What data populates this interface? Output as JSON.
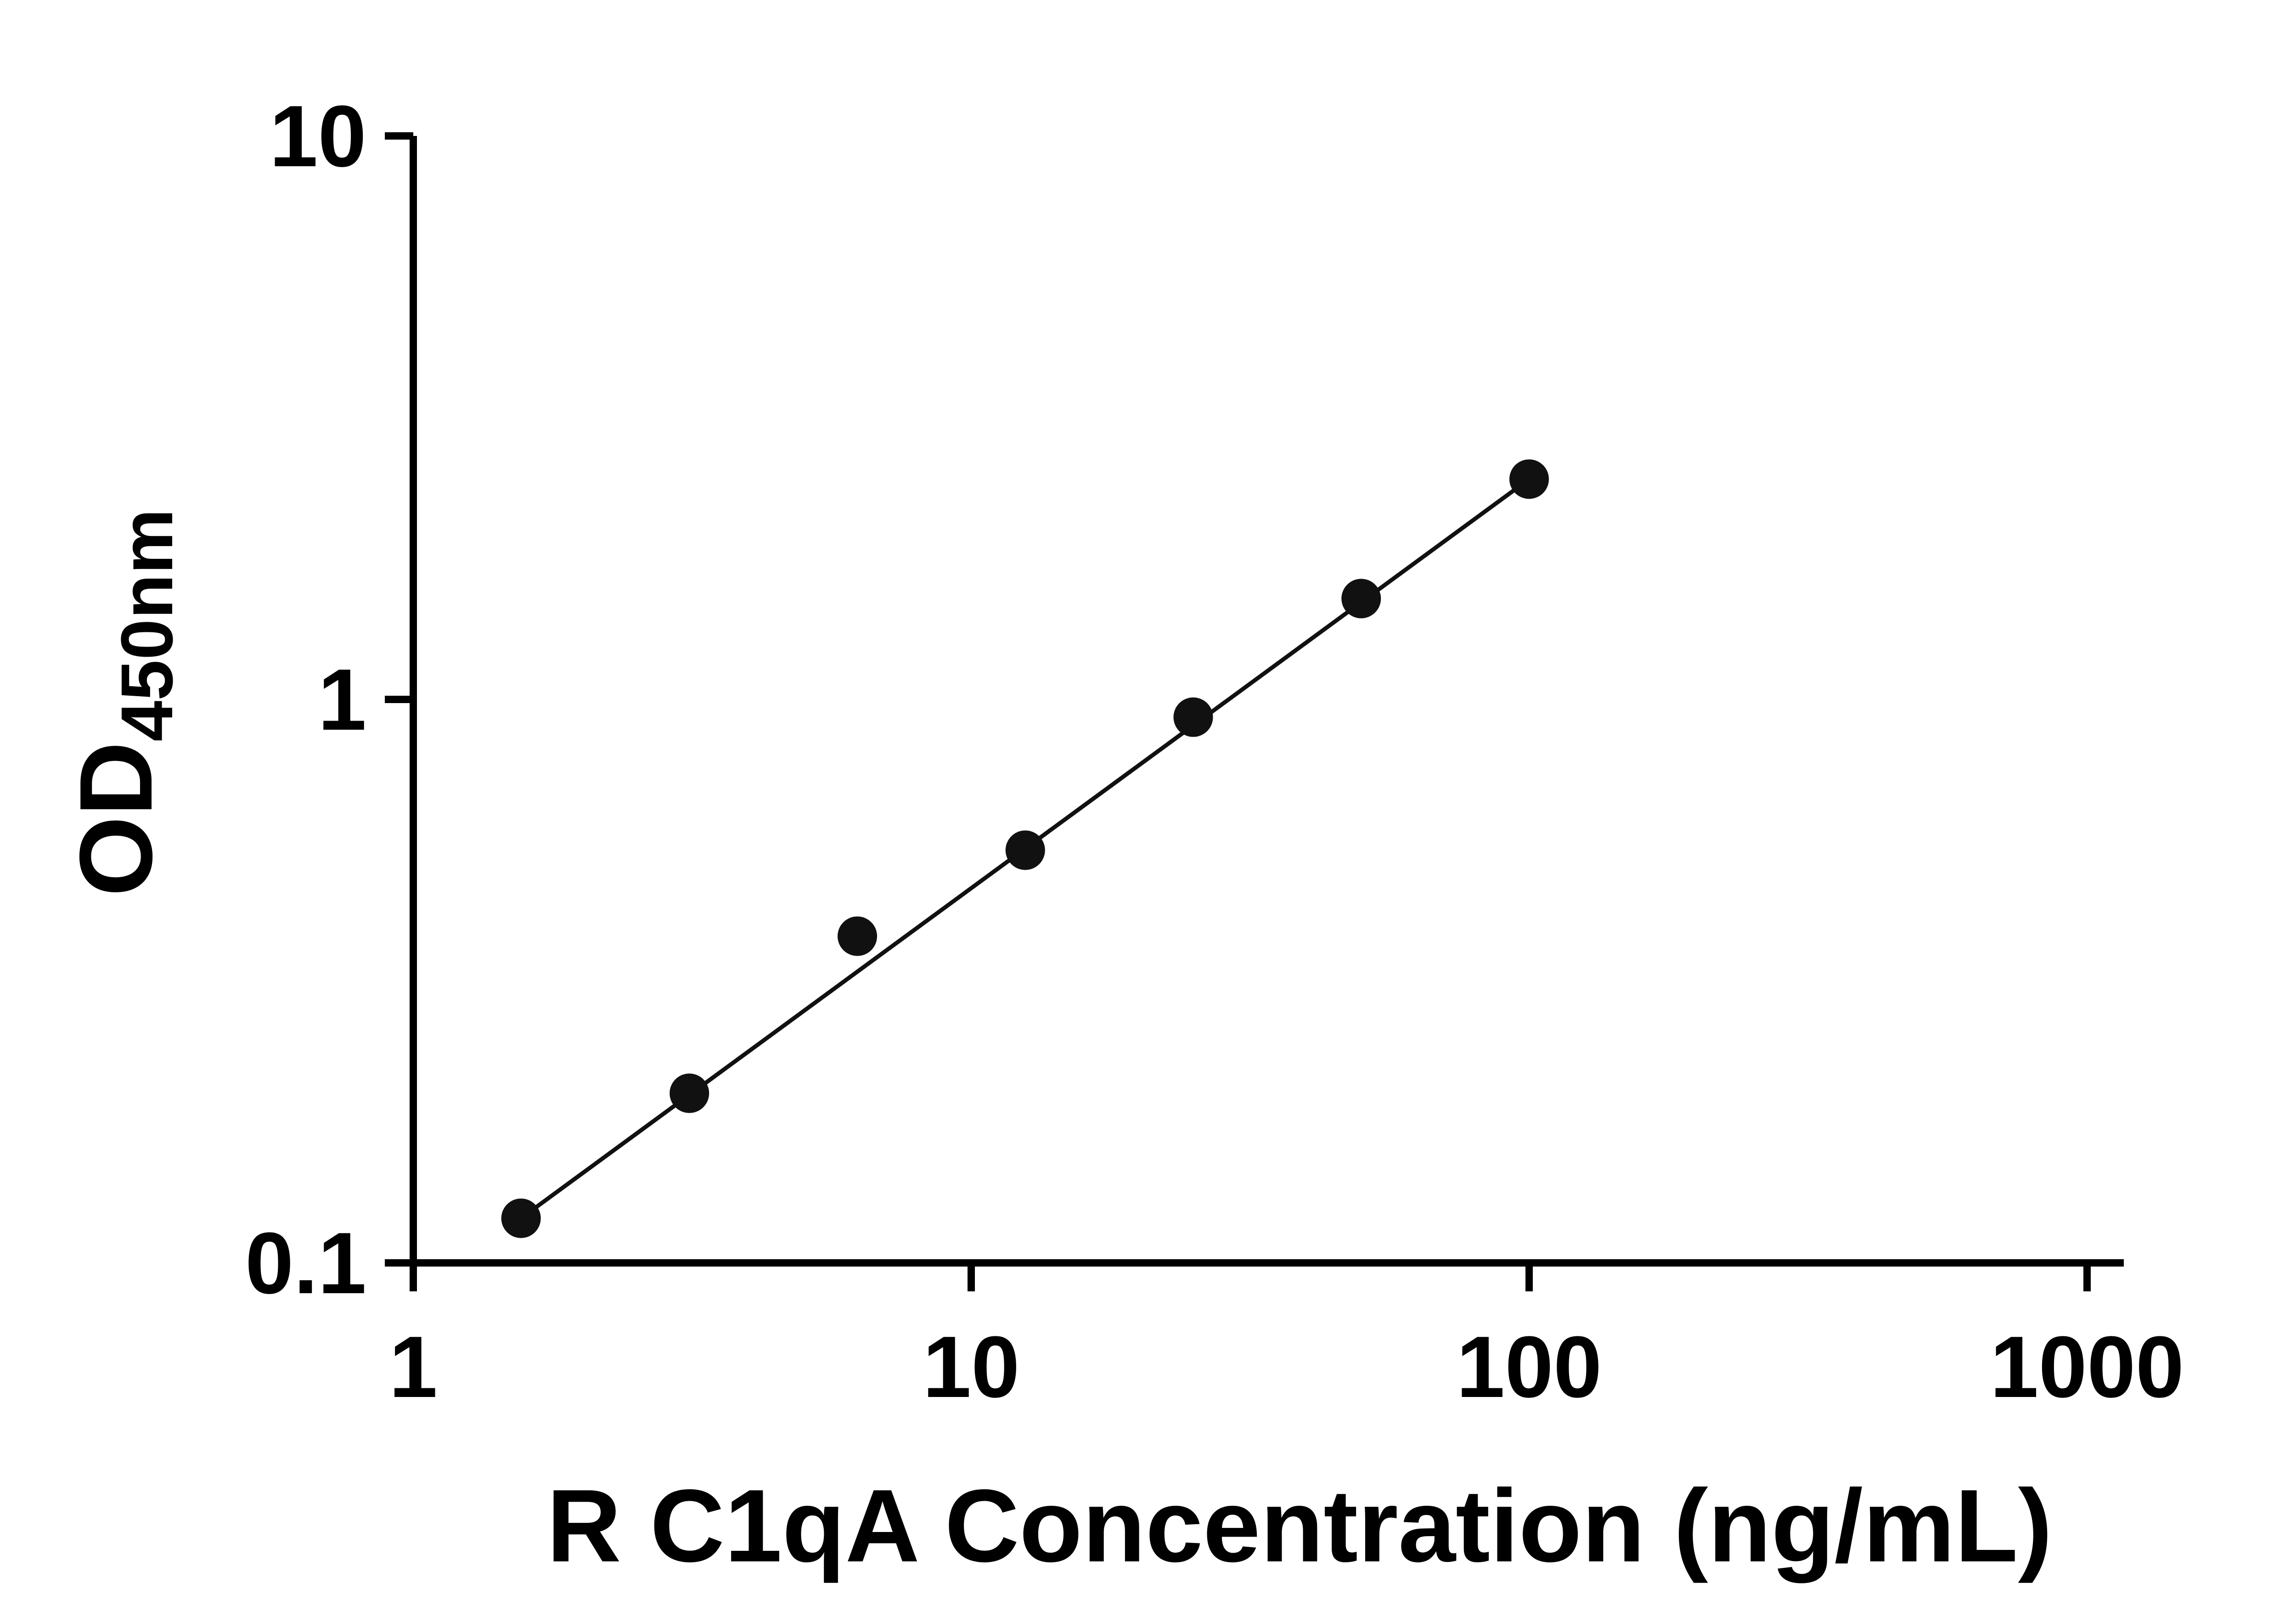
{
  "figure": {
    "background": "#ffffff"
  },
  "chart_data": {
    "type": "scatter",
    "title": "",
    "xlabel": "R C1qA Concentration (ng/mL)",
    "ylabel_main": "OD",
    "ylabel_sub": "450nm",
    "x_scale": "log",
    "y_scale": "log",
    "xlim": [
      1,
      1000
    ],
    "ylim": [
      0.1,
      10
    ],
    "x_ticks": [
      1,
      10,
      100,
      1000
    ],
    "x_tick_labels": [
      "1",
      "10",
      "100",
      "1000"
    ],
    "y_ticks": [
      0.1,
      1,
      10
    ],
    "y_tick_labels": [
      "0.1",
      "1",
      "10"
    ],
    "grid": false,
    "legend": false,
    "axis_color": "#000000",
    "marker_color": "#111111",
    "line_color": "#111111",
    "points": {
      "x": [
        1.56,
        3.125,
        6.25,
        12.5,
        25,
        50,
        100
      ],
      "y": [
        0.12,
        0.2,
        0.38,
        0.54,
        0.93,
        1.51,
        2.46
      ]
    },
    "trend_line": {
      "x": [
        1.56,
        100
      ],
      "y": [
        0.12,
        2.46
      ]
    }
  }
}
